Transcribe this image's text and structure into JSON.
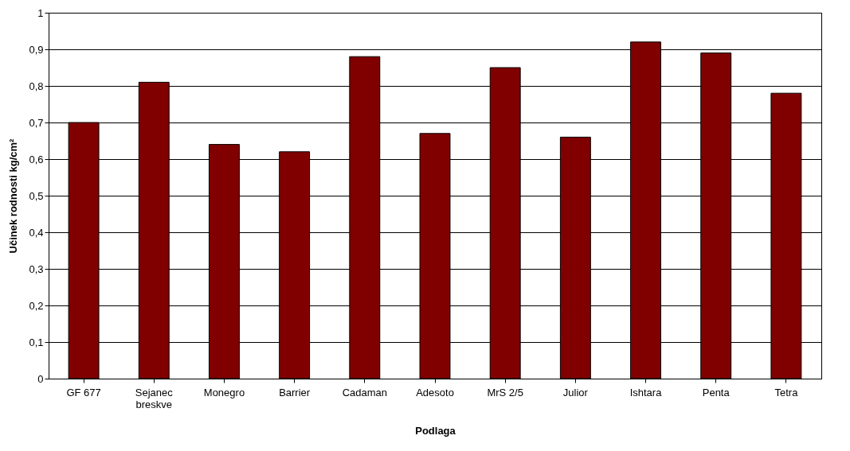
{
  "chart_data": {
    "type": "bar",
    "xlabel": "Podlaga",
    "ylabel": "Učinek rodnosti kg/cm²",
    "categories": [
      "GF 677",
      "Sejanec breskve",
      "Monegro",
      "Barrier",
      "Cadaman",
      "Adesoto",
      "MrS 2/5",
      "Julior",
      "Ishtara",
      "Penta",
      "Tetra"
    ],
    "values": [
      0.7,
      0.81,
      0.64,
      0.62,
      0.88,
      0.67,
      0.85,
      0.66,
      0.92,
      0.89,
      0.78
    ],
    "color": "#800000",
    "ylim": [
      0,
      1
    ],
    "yticks": [
      0,
      {
        "value": 0.1,
        "label": "0,1"
      },
      {
        "value": 0.2,
        "label": "0,2"
      },
      {
        "value": 0.3,
        "label": "0,3"
      },
      {
        "value": 0.4,
        "label": "0,4"
      },
      {
        "value": 0.5,
        "label": "0,5"
      },
      {
        "value": 0.6,
        "label": "0,6"
      },
      {
        "value": 0.7,
        "label": "0,7"
      },
      {
        "value": 0.8,
        "label": "0,8"
      },
      {
        "value": 0.9,
        "label": "0,9"
      },
      1
    ],
    "grid": "y"
  }
}
